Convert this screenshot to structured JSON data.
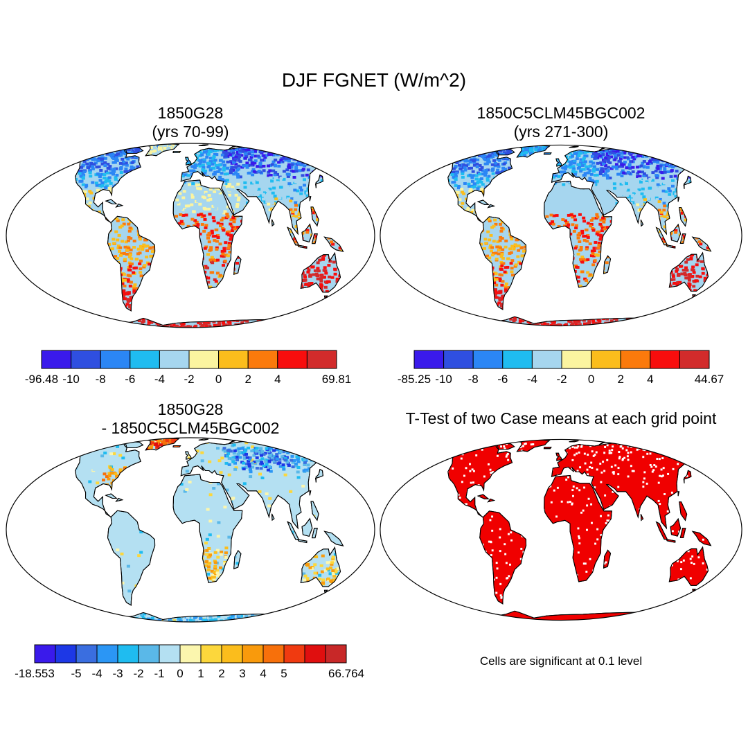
{
  "title": "DJF FGNET (W/m^2)",
  "panels": [
    {
      "title_line1": "1850G28",
      "title_line2": "(yrs 70-99)",
      "style": "field1",
      "colorbar": {
        "colors": [
          "#3a1aeb",
          "#2f4fe0",
          "#2b86f5",
          "#1fbcf0",
          "#a6d6ef",
          "#fbf4a0",
          "#fbbd1c",
          "#fb7a0c",
          "#f80d0d",
          "#d22b2b"
        ],
        "labels": [
          "-96.48",
          "-10",
          "-8",
          "-6",
          "-4",
          "-2",
          "0",
          "2",
          "4",
          "69.81"
        ]
      }
    },
    {
      "title_line1": "1850C5CLM45BGC002",
      "title_line2": "(yrs 271-300)",
      "style": "field2",
      "colorbar": {
        "colors": [
          "#3a1aeb",
          "#2f4fe0",
          "#2b86f5",
          "#1fbcf0",
          "#a6d6ef",
          "#fbf4a0",
          "#fbbd1c",
          "#fb7a0c",
          "#f80d0d",
          "#d22b2b"
        ],
        "labels": [
          "-85.25",
          "-10",
          "-8",
          "-6",
          "-4",
          "-2",
          "0",
          "2",
          "4",
          "44.67"
        ]
      }
    },
    {
      "title_line1": "1850G28",
      "title_line2": "- 1850C5CLM45BGC002",
      "style": "diff",
      "colorbar": {
        "colors": [
          "#3a1aeb",
          "#1d38e6",
          "#3a6ee0",
          "#2b96f5",
          "#1fbcf0",
          "#5ab8e8",
          "#b4e0f2",
          "#fbf6ae",
          "#fcd73c",
          "#fbbd1c",
          "#f99a0c",
          "#f7700b",
          "#f03a10",
          "#e00f0f",
          "#c82828"
        ],
        "labels": [
          "-18.553",
          "-5",
          "-4",
          "-3",
          "-2",
          "-1",
          "0",
          "1",
          "2",
          "3",
          "4",
          "5",
          "66.764"
        ]
      }
    },
    {
      "title_line1": "T-Test of two Case means at each grid point",
      "title_line2": "",
      "style": "ttest",
      "note": "Cells are significant at 0.1 level",
      "fill_color": "#f00000"
    }
  ]
}
